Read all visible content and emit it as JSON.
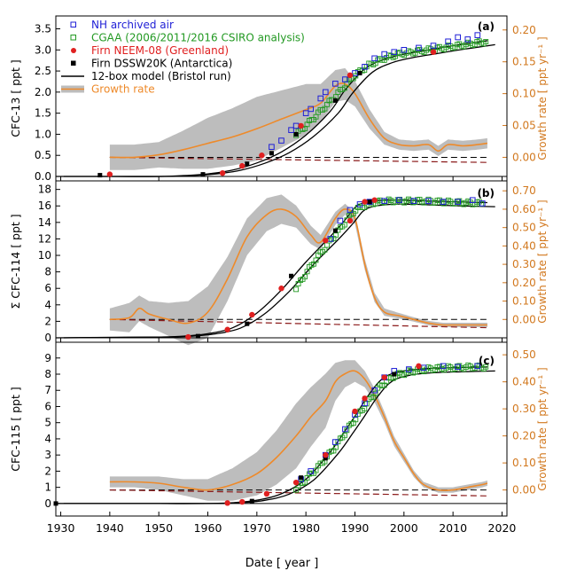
{
  "figure": {
    "xlabel": "Date [ year ]",
    "x_ticks": [
      "1930",
      "1940",
      "1950",
      "1960",
      "1970",
      "1980",
      "1990",
      "2000",
      "2010",
      "2020"
    ],
    "x_tick_values": [
      1930,
      1940,
      1950,
      1960,
      1970,
      1980,
      1990,
      2000,
      2010,
      2020
    ],
    "xlim": [
      1929,
      2021
    ],
    "colors": {
      "nh_archived": "#1f1fd6",
      "cgaa": "#229922",
      "firn_neem": "#e02020",
      "firn_dssw": "#000000",
      "model": "#000000",
      "growth_rate": "#ee8a2a",
      "growth_band": "#bdbdbd",
      "zero_line": "#000000",
      "decline_line": "#8b1a1a",
      "right_axis": "#d2781e"
    },
    "legend": {
      "items": [
        {
          "label": "NH archived air",
          "color": "#1f1fd6",
          "marker": "open-square"
        },
        {
          "label": "CGAA (2006/2011/2016 CSIRO analysis)",
          "color": "#229922",
          "marker": "open-square"
        },
        {
          "label": "Firn NEEM-08 (Greenland)",
          "color": "#e02020",
          "marker": "filled-circle"
        },
        {
          "label": "Firn DSSW20K (Antarctica)",
          "color": "#000000",
          "marker": "filled-square"
        },
        {
          "label": "12-box model (Bristol run)",
          "color": "#000000",
          "marker": "line"
        },
        {
          "label": "Growth rate",
          "color": "#ee8a2a",
          "marker": "band-line"
        }
      ]
    }
  },
  "chart_data": [
    {
      "type": "line",
      "panel_label": "(a)",
      "ylabel": "CFC-13  [ ppt ]",
      "y2label": "Growth rate [ ppt yr⁻¹ ]",
      "ylim": [
        0,
        3.7
      ],
      "y_ticks": [
        "0.0",
        "0.5",
        "1.0",
        "1.5",
        "2.0",
        "2.5",
        "3.0",
        "3.5"
      ],
      "y2lim": [
        -0.03,
        0.215
      ],
      "y2_ticks": [
        "0.00",
        "0.05",
        "0.10",
        "0.15",
        "0.20"
      ],
      "series": [
        {
          "name": "12-box model (Bristol run)",
          "x": [
            1929,
            1940,
            1950,
            1955,
            1960,
            1965,
            1970,
            1975,
            1980,
            1985,
            1988,
            1992,
            1996,
            2000,
            2005,
            2010,
            2017
          ],
          "y": [
            0.0,
            0.0,
            0.0,
            0.02,
            0.06,
            0.15,
            0.32,
            0.58,
            0.98,
            1.55,
            2.05,
            2.55,
            2.78,
            2.9,
            3.0,
            3.1,
            3.22
          ]
        },
        {
          "name": "NH archived air",
          "x": [
            1973,
            1975,
            1977,
            1978,
            1980,
            1981,
            1983,
            1984,
            1986,
            1988,
            1990,
            1992,
            1994,
            1996,
            1998,
            2000,
            2003,
            2006,
            2009,
            2011,
            2013,
            2015
          ],
          "y": [
            0.7,
            0.85,
            1.1,
            1.2,
            1.5,
            1.6,
            1.85,
            2.0,
            2.2,
            2.3,
            2.45,
            2.6,
            2.8,
            2.9,
            2.95,
            3.0,
            3.05,
            3.1,
            3.2,
            3.3,
            3.25,
            3.35
          ]
        },
        {
          "name": "CGAA (2006/2011/2016 CSIRO analysis)",
          "x": [
            1978,
            1980,
            1983,
            1986,
            1988,
            1990,
            1993,
            1996,
            1999,
            2002,
            2005,
            2008,
            2011,
            2014,
            2017
          ],
          "y": [
            1.0,
            1.2,
            1.55,
            1.9,
            2.15,
            2.4,
            2.65,
            2.8,
            2.9,
            2.95,
            3.0,
            3.05,
            3.1,
            3.15,
            3.2
          ]
        },
        {
          "name": "Firn NEEM-08 (Greenland)",
          "x": [
            1940,
            1963,
            1967,
            1971,
            1979,
            1989,
            2006
          ],
          "y": [
            0.05,
            0.08,
            0.25,
            0.5,
            1.2,
            2.4,
            2.95
          ]
        },
        {
          "name": "Firn DSSW20K (Antarctica)",
          "x": [
            1938,
            1959,
            1968,
            1973,
            1978,
            1986,
            1991
          ],
          "y": [
            0.03,
            0.05,
            0.3,
            0.55,
            1.0,
            1.8,
            2.45
          ]
        },
        {
          "name": "Growth rate",
          "x": [
            1940,
            1945,
            1950,
            1955,
            1960,
            1965,
            1970,
            1975,
            1980,
            1983,
            1986,
            1988,
            1990,
            1993,
            1996,
            1999,
            2002,
            2005,
            2007,
            2009,
            2012,
            2015,
            2017
          ],
          "y": [
            0.0,
            0.0,
            0.004,
            0.012,
            0.022,
            0.032,
            0.045,
            0.06,
            0.075,
            0.085,
            0.112,
            0.115,
            0.1,
            0.06,
            0.03,
            0.02,
            0.018,
            0.02,
            0.01,
            0.02,
            0.018,
            0.02,
            0.022
          ],
          "band_half_width": [
            0.02,
            0.02,
            0.02,
            0.03,
            0.04,
            0.045,
            0.05,
            0.045,
            0.04,
            0.03,
            0.025,
            0.025,
            0.02,
            0.015,
            0.01,
            0.008,
            0.008,
            0.008,
            0.008,
            0.008,
            0.008,
            0.008,
            0.008
          ]
        }
      ],
      "decline_line": {
        "x": [
          1940,
          2017
        ],
        "y": [
          0.0,
          -0.008
        ]
      }
    },
    {
      "type": "line",
      "panel_label": "(b)",
      "ylabel": "Σ CFC-114  [ ppt ]",
      "y2label": "Growth rate [ ppt yr⁻¹ ]",
      "ylim": [
        0,
        18.5
      ],
      "y_ticks": [
        "0",
        "2",
        "4",
        "6",
        "8",
        "10",
        "12",
        "14",
        "16",
        "18"
      ],
      "y2lim": [
        -0.1,
        0.73
      ],
      "y2_ticks": [
        "0.00",
        "0.10",
        "0.20",
        "0.30",
        "0.40",
        "0.50",
        "0.60",
        "0.70"
      ],
      "series": [
        {
          "name": "12-box model (Bristol run)",
          "x": [
            1929,
            1940,
            1950,
            1955,
            1960,
            1965,
            1970,
            1975,
            1980,
            1985,
            1988,
            1990,
            1992,
            1996,
            2000,
            2005,
            2010,
            2017
          ],
          "y": [
            0.0,
            0.05,
            0.1,
            0.2,
            0.5,
            1.2,
            3.0,
            5.8,
            9.2,
            12.3,
            14.3,
            15.8,
            16.4,
            16.7,
            16.7,
            16.6,
            16.5,
            16.4
          ]
        },
        {
          "name": "NH archived air",
          "x": [
            1985,
            1987,
            1989,
            1991,
            1993,
            1996,
            1999,
            2002,
            2005,
            2008,
            2011,
            2014,
            2016
          ],
          "y": [
            12.0,
            14.2,
            15.5,
            16.2,
            16.5,
            16.6,
            16.7,
            16.6,
            16.6,
            16.5,
            16.5,
            16.7,
            16.3
          ]
        },
        {
          "name": "CGAA (2006/2011/2016 CSIRO analysis)",
          "x": [
            1978,
            1980,
            1982,
            1984,
            1986,
            1988,
            1990,
            1993,
            1996,
            2000,
            2004,
            2008,
            2012,
            2016
          ],
          "y": [
            6.0,
            7.8,
            9.5,
            11.0,
            12.5,
            14.0,
            15.5,
            16.3,
            16.6,
            16.6,
            16.6,
            16.5,
            16.4,
            16.3
          ]
        },
        {
          "name": "Firn NEEM-08 (Greenland)",
          "x": [
            1956,
            1964,
            1969,
            1975,
            1984,
            1989,
            1992,
            1994
          ],
          "y": [
            0.1,
            1.0,
            2.8,
            6.0,
            11.8,
            14.2,
            16.5,
            16.7
          ]
        },
        {
          "name": "Firn DSSW20K (Antarctica)",
          "x": [
            1958,
            1968,
            1977,
            1986,
            1993
          ],
          "y": [
            0.2,
            1.7,
            7.5,
            13.0,
            16.5
          ]
        },
        {
          "name": "Growth rate",
          "x": [
            1940,
            1944,
            1946,
            1948,
            1952,
            1956,
            1960,
            1964,
            1968,
            1972,
            1975,
            1978,
            1981,
            1983,
            1986,
            1988,
            1990,
            1992,
            1994,
            1996,
            1999,
            2002,
            2005,
            2008,
            2011,
            2014,
            2017
          ],
          "y": [
            0.0,
            0.01,
            0.06,
            0.03,
            0.0,
            -0.02,
            0.04,
            0.22,
            0.45,
            0.57,
            0.6,
            0.56,
            0.46,
            0.42,
            0.55,
            0.6,
            0.55,
            0.3,
            0.12,
            0.04,
            0.02,
            0.0,
            -0.02,
            -0.03,
            -0.03,
            -0.03,
            -0.03
          ],
          "band_half_width": [
            0.06,
            0.08,
            0.07,
            0.07,
            0.09,
            0.12,
            0.14,
            0.12,
            0.1,
            0.09,
            0.08,
            0.06,
            0.05,
            0.04,
            0.035,
            0.03,
            0.03,
            0.03,
            0.025,
            0.02,
            0.015,
            0.012,
            0.012,
            0.012,
            0.012,
            0.012,
            0.012
          ]
        }
      ],
      "decline_line": {
        "x": [
          1940,
          2017
        ],
        "y": [
          0.0,
          -0.045
        ]
      }
    },
    {
      "type": "line",
      "panel_label": "(c)",
      "ylabel": "CFC-115  [ ppt ]",
      "y2label": "Growth rate [ ppt yr⁻¹ ]",
      "ylim": [
        -0.5,
        9.7
      ],
      "y_ticks": [
        "0",
        "1",
        "2",
        "3",
        "4",
        "5",
        "6",
        "7",
        "8",
        "9"
      ],
      "y2lim": [
        -0.08,
        0.53
      ],
      "y2_ticks": [
        "0.00",
        "0.10",
        "0.20",
        "0.30",
        "0.40",
        "0.50"
      ],
      "series": [
        {
          "name": "12-box model (Bristol run)",
          "x": [
            1929,
            1940,
            1950,
            1960,
            1965,
            1970,
            1975,
            1980,
            1985,
            1988,
            1990,
            1993,
            1996,
            2000,
            2005,
            2010,
            2017
          ],
          "y": [
            0.0,
            0.0,
            0.0,
            0.0,
            0.05,
            0.2,
            0.6,
            1.5,
            3.2,
            4.5,
            5.4,
            6.8,
            7.8,
            8.2,
            8.35,
            8.4,
            8.45
          ]
        },
        {
          "name": "NH archived air",
          "x": [
            1979,
            1981,
            1984,
            1986,
            1988,
            1990,
            1992,
            1994,
            1996,
            1998,
            2001,
            2004,
            2008,
            2011,
            2015
          ],
          "y": [
            1.5,
            2.0,
            3.0,
            3.8,
            4.6,
            5.5,
            6.2,
            7.0,
            7.8,
            8.2,
            8.3,
            8.4,
            8.5,
            8.45,
            8.5
          ]
        },
        {
          "name": "CGAA (2006/2011/2016 CSIRO analysis)",
          "x": [
            1978,
            1980,
            1983,
            1986,
            1989,
            1992,
            1995,
            1998,
            2002,
            2006,
            2010,
            2014,
            2017
          ],
          "y": [
            0.9,
            1.5,
            2.4,
            3.5,
            4.8,
            6.0,
            7.2,
            7.9,
            8.2,
            8.35,
            8.4,
            8.45,
            8.45
          ]
        },
        {
          "name": "Firn NEEM-08 (Greenland)",
          "x": [
            1964,
            1967,
            1972,
            1978,
            1984,
            1990,
            1992,
            1996,
            2003
          ],
          "y": [
            0.03,
            0.1,
            0.6,
            1.3,
            3.0,
            5.7,
            6.5,
            7.8,
            8.5
          ]
        },
        {
          "name": "Firn DSSW20K (Antarctica)",
          "x": [
            1929,
            1969,
            1979,
            1984,
            1992,
            1998
          ],
          "y": [
            0.0,
            0.15,
            1.6,
            2.8,
            6.5,
            8.0
          ]
        },
        {
          "name": "Growth rate",
          "x": [
            1940,
            1945,
            1950,
            1955,
            1960,
            1965,
            1970,
            1974,
            1978,
            1981,
            1984,
            1986,
            1988,
            1990,
            1992,
            1994,
            1996,
            1998,
            2000,
            2002,
            2004,
            2007,
            2010,
            2013,
            2016,
            2017
          ],
          "y": [
            0.03,
            0.03,
            0.025,
            0.01,
            0.0,
            0.02,
            0.06,
            0.12,
            0.2,
            0.27,
            0.33,
            0.4,
            0.43,
            0.44,
            0.41,
            0.35,
            0.27,
            0.18,
            0.12,
            0.06,
            0.02,
            0.0,
            0.0,
            0.01,
            0.02,
            0.025
          ],
          "band_half_width": [
            0.02,
            0.02,
            0.025,
            0.03,
            0.04,
            0.06,
            0.08,
            0.1,
            0.12,
            0.11,
            0.1,
            0.07,
            0.05,
            0.04,
            0.03,
            0.025,
            0.02,
            0.018,
            0.015,
            0.012,
            0.01,
            0.01,
            0.01,
            0.01,
            0.01,
            0.01
          ]
        }
      ],
      "decline_line": {
        "x": [
          1940,
          2017
        ],
        "y": [
          0.0,
          -0.022
        ]
      }
    }
  ]
}
